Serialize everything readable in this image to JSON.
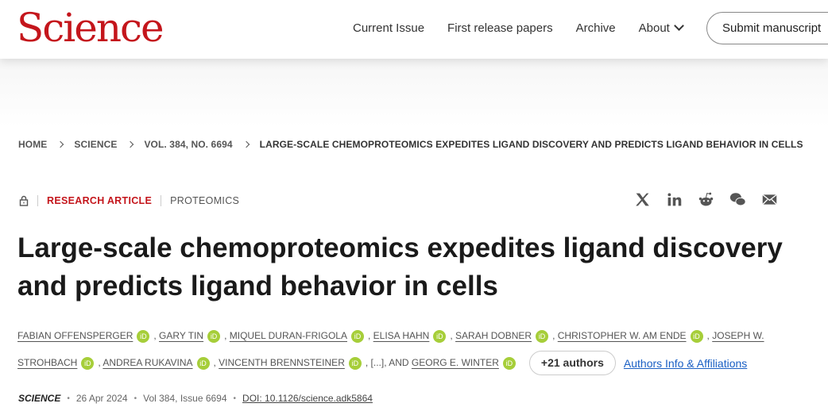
{
  "header": {
    "logo": "Science",
    "nav": [
      "Current Issue",
      "First release papers",
      "Archive",
      "About"
    ],
    "submit": "Submit manuscript"
  },
  "breadcrumb": [
    "HOME",
    "SCIENCE",
    "VOL. 384, NO. 6694",
    "LARGE-SCALE CHEMOPROTEOMICS EXPEDITES LIGAND DISCOVERY AND PREDICTS LIGAND BEHAVIOR IN CELLS"
  ],
  "meta": {
    "type": "RESEARCH ARTICLE",
    "section": "PROTEOMICS",
    "accent": "#c4161c"
  },
  "share_icons": [
    "x-icon",
    "linkedin-icon",
    "reddit-icon",
    "wechat-icon",
    "email-icon"
  ],
  "title": "Large-scale chemoproteomics expedites ligand discovery and predicts ligand behavior in cells",
  "authors": [
    "FABIAN OFFENSPERGER",
    "GARY TIN",
    "MIQUEL DURAN-FRIGOLA",
    "ELISA HAHN",
    "SARAH DOBNER",
    "CHRISTOPHER W. AM ENDE",
    "JOSEPH W. STROHBACH",
    "ANDREA RUKAVINA",
    "VINCENTH BRENNSTEINER"
  ],
  "ellipsis": "[...], AND",
  "last_author": "GEORG E. WINTER",
  "orcid_label": "iD",
  "more_authors": "+21 authors",
  "affiliations": "Authors Info & Affiliations",
  "pub": {
    "journal": "SCIENCE",
    "date": "26 Apr 2024",
    "volume": "Vol 384, Issue 6694",
    "doi": "DOI: 10.1126/science.adk5864"
  }
}
